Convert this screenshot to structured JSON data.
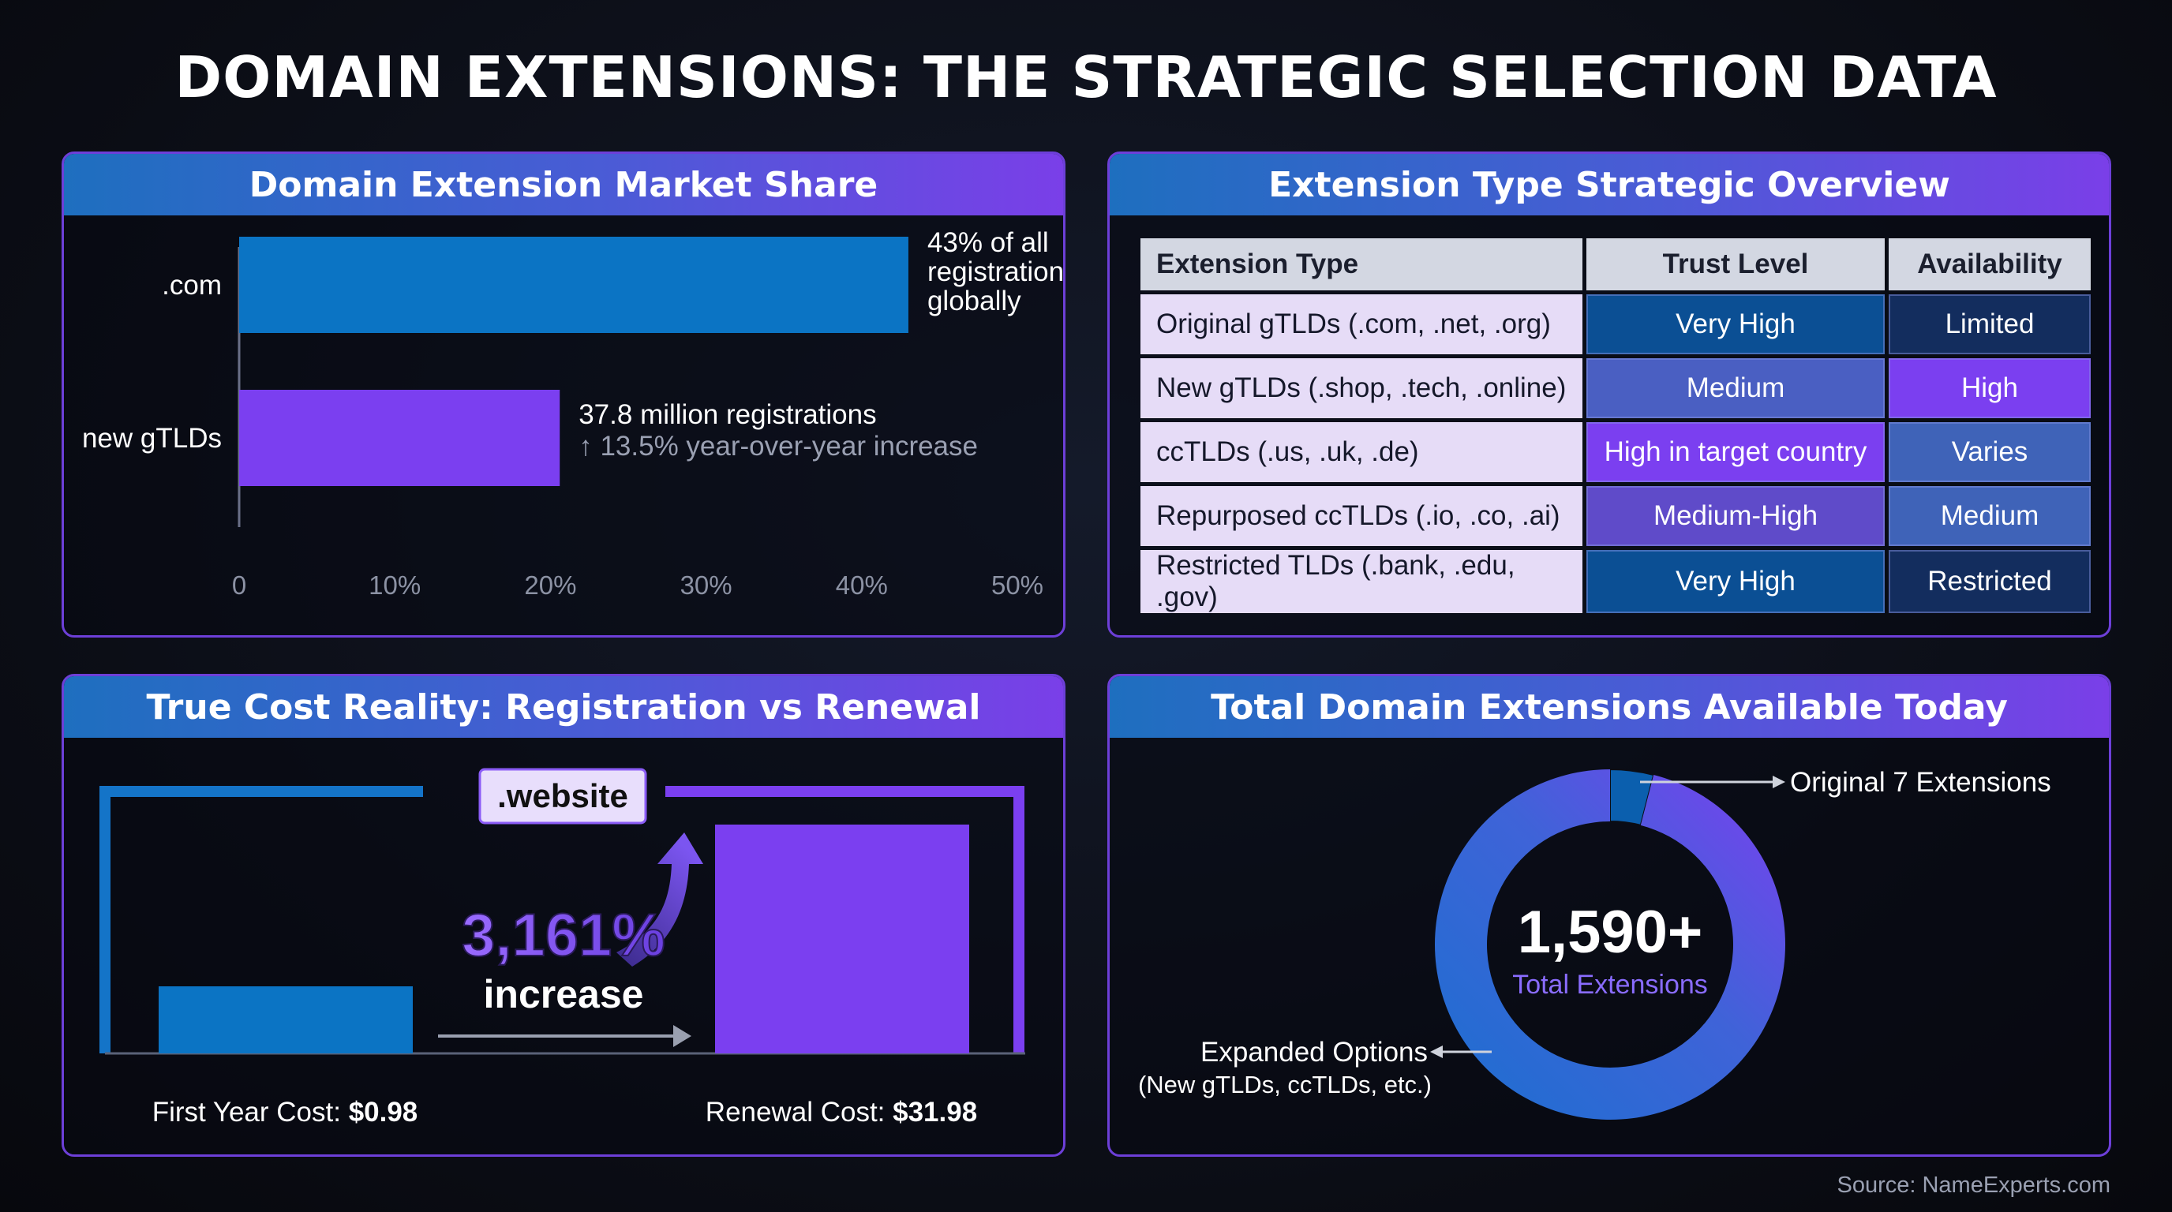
{
  "title": "DOMAIN EXTENSIONS: THE STRATEGIC SELECTION DATA",
  "source": "Source: NameExperts.com",
  "colors": {
    "blue": "#0b74c4",
    "purple": "#7b3ff0",
    "panel_border": "#6d3fd8"
  },
  "market_share": {
    "header": "Domain Extension Market Share",
    "annotation_com": [
      "43% of all",
      "registrations",
      "globally"
    ],
    "annotation_new": [
      "37.8 million registrations",
      "↑ 13.5% year-over-year increase"
    ]
  },
  "overview": {
    "header": "Extension Type Strategic Overview",
    "columns": [
      "Extension Type",
      "Trust Level",
      "Availability"
    ],
    "rows": [
      {
        "type": "Original gTLDs (.com, .net, .org)",
        "trust": "Very High",
        "availability": "Limited",
        "trust_color": "#0b4f94",
        "avail_color": "#132d5e"
      },
      {
        "type": "New gTLDs (.shop, .tech, .online)",
        "trust": "Medium",
        "availability": "High",
        "trust_color": "#4a5fc2",
        "avail_color": "#7b3ff0"
      },
      {
        "type": "ccTLDs (.us, .uk, .de)",
        "trust": "High in target country",
        "availability": "Varies",
        "trust_color": "#7b3ff0",
        "avail_color": "#3f63b8"
      },
      {
        "type": "Repurposed ccTLDs (.io, .co, .ai)",
        "trust": "Medium-High",
        "availability": "Medium",
        "trust_color": "#5f4bc9",
        "avail_color": "#3f63b8"
      },
      {
        "type": "Restricted TLDs (.bank, .edu, .gov)",
        "trust": "Very High",
        "availability": "Restricted",
        "trust_color": "#0b4f94",
        "avail_color": "#132d5e"
      }
    ]
  },
  "cost": {
    "header": "True Cost Reality: Registration vs Renewal",
    "tag": ".website",
    "increase_value": "3,161%",
    "increase_word": "increase",
    "first_label": "First Year Cost: ",
    "first_value": "$0.98",
    "renewal_label": "Renewal Cost: ",
    "renewal_value": "$31.98"
  },
  "total": {
    "header": "Total Domain Extensions Available Today",
    "center_value": "1,590+",
    "center_label": "Total Extensions",
    "label_original": "Original 7 Extensions",
    "label_expanded": "Expanded Options",
    "label_expanded_sub": "(New gTLDs, ccTLDs, etc.)"
  },
  "chart_data": [
    {
      "type": "bar",
      "orientation": "horizontal",
      "title": "Domain Extension Market Share",
      "categories": [
        ".com",
        "new gTLDs"
      ],
      "values": [
        43,
        20.6
      ],
      "xlim": [
        0,
        50
      ],
      "xticks": [
        "0",
        "10%",
        "20%",
        "30%",
        "40%",
        "50%"
      ],
      "xtick_values": [
        0,
        10,
        20,
        30,
        40,
        50
      ],
      "bar_colors": [
        "#0b74c4",
        "#7b3ff0"
      ]
    },
    {
      "type": "bar",
      "title": "True Cost Reality: Registration vs Renewal",
      "categories": [
        "First Year Cost",
        "Renewal Cost"
      ],
      "values": [
        0.98,
        31.98
      ],
      "bar_colors": [
        "#0b74c4",
        "#7b3ff0"
      ]
    },
    {
      "type": "pie",
      "title": "Total Domain Extensions Available Today",
      "categories": [
        "Original 7 Extensions",
        "Expanded Options"
      ],
      "values": [
        7,
        1583
      ],
      "slice_colors": [
        "#0b5fae",
        "#5a4fe0"
      ]
    }
  ]
}
